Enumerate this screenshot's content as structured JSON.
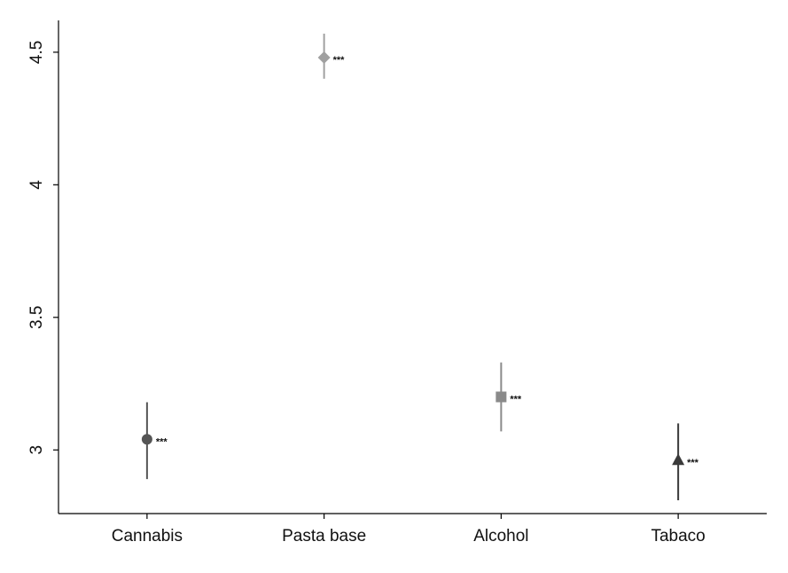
{
  "chart_data": {
    "type": "scatter",
    "title": "",
    "xlabel": "",
    "ylabel": "",
    "categories": [
      "Cannabis",
      "Pasta base",
      "Alcohol",
      "Tabaco"
    ],
    "points": [
      {
        "category": "Cannabis",
        "value": 3.04,
        "ci_low": 2.89,
        "ci_high": 3.18,
        "marker": "circle",
        "color": "#555555",
        "significance": "***"
      },
      {
        "category": "Pasta base",
        "value": 4.48,
        "ci_low": 4.4,
        "ci_high": 4.57,
        "marker": "diamond",
        "color": "#a0a0a0",
        "significance": "***"
      },
      {
        "category": "Alcohol",
        "value": 3.2,
        "ci_low": 3.07,
        "ci_high": 3.33,
        "marker": "square",
        "color": "#8a8a8a",
        "significance": "***"
      },
      {
        "category": "Tabaco",
        "value": 2.96,
        "ci_low": 2.81,
        "ci_high": 3.1,
        "marker": "triangle",
        "color": "#3a3a3a",
        "significance": "***"
      }
    ],
    "yticks": [
      "3",
      "3.5",
      "4",
      "4.5"
    ],
    "ylim": [
      2.76,
      4.62
    ],
    "grid": false,
    "legend": "none"
  }
}
